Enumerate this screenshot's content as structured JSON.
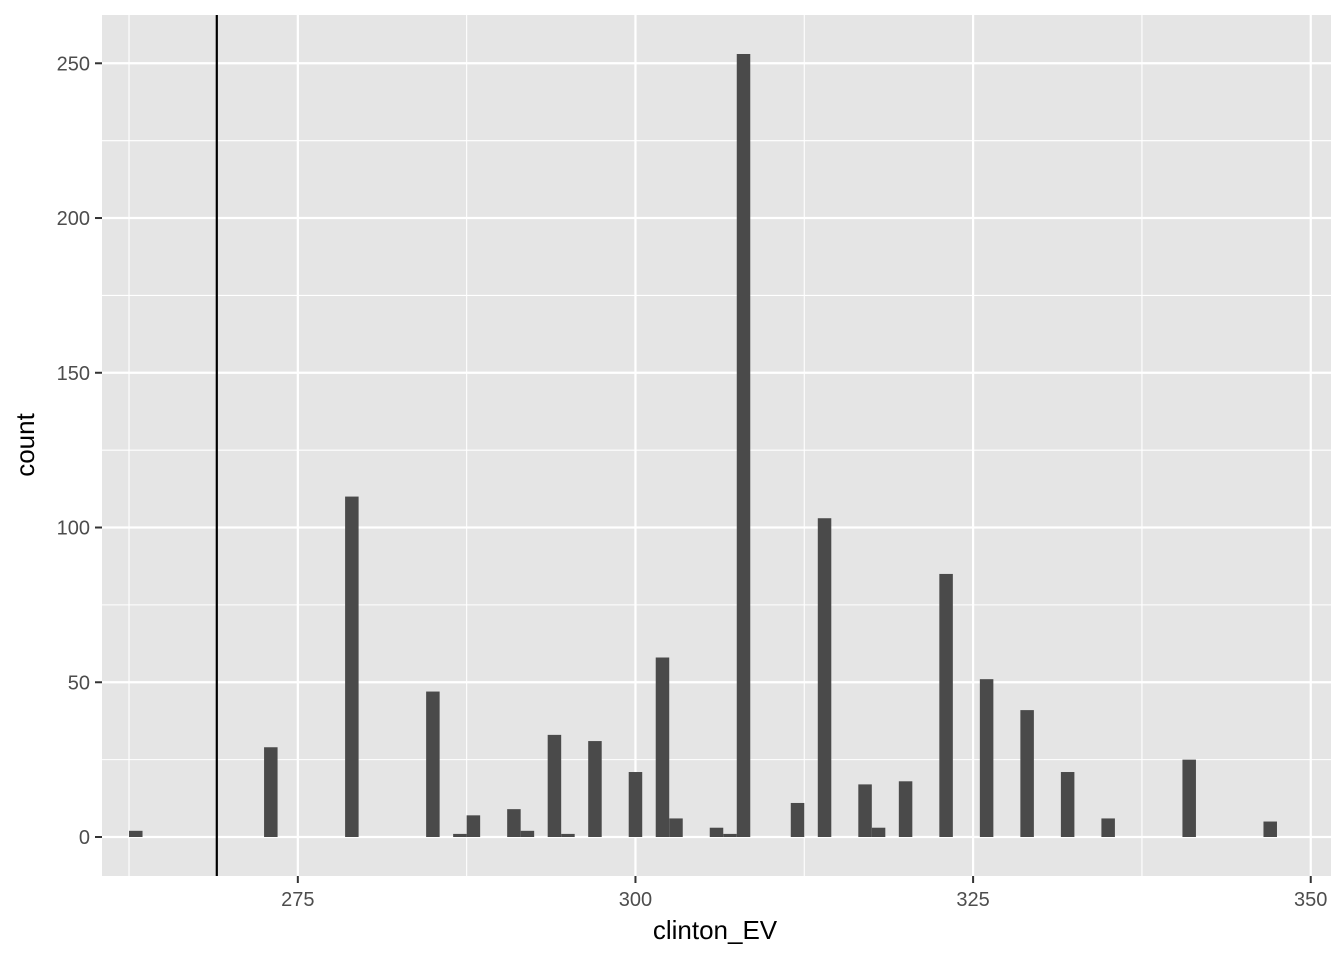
{
  "chart_data": {
    "type": "bar",
    "xlabel": "clinton_EV",
    "ylabel": "count",
    "xlim": [
      260.5,
      351.5
    ],
    "ylim": [
      -12.6,
      265.6
    ],
    "x_ticks": [
      275,
      300,
      325,
      350
    ],
    "x_minor_ticks": [
      262.5,
      287.5,
      312.5,
      337.5
    ],
    "y_ticks": [
      0,
      50,
      100,
      150,
      200,
      250
    ],
    "y_minor_ticks": [
      25,
      75,
      125,
      175,
      225
    ],
    "bin_width": 1,
    "vline_x": 269,
    "bins": [
      {
        "x": 263,
        "count": 2
      },
      {
        "x": 273,
        "count": 29
      },
      {
        "x": 279,
        "count": 110
      },
      {
        "x": 285,
        "count": 47
      },
      {
        "x": 287,
        "count": 1
      },
      {
        "x": 288,
        "count": 7
      },
      {
        "x": 291,
        "count": 9
      },
      {
        "x": 292,
        "count": 2
      },
      {
        "x": 294,
        "count": 33
      },
      {
        "x": 295,
        "count": 1
      },
      {
        "x": 297,
        "count": 31
      },
      {
        "x": 300,
        "count": 21
      },
      {
        "x": 302,
        "count": 58
      },
      {
        "x": 303,
        "count": 6
      },
      {
        "x": 306,
        "count": 3
      },
      {
        "x": 307,
        "count": 1
      },
      {
        "x": 308,
        "count": 253
      },
      {
        "x": 312,
        "count": 11
      },
      {
        "x": 314,
        "count": 103
      },
      {
        "x": 317,
        "count": 17
      },
      {
        "x": 318,
        "count": 3
      },
      {
        "x": 320,
        "count": 18
      },
      {
        "x": 323,
        "count": 85
      },
      {
        "x": 326,
        "count": 51
      },
      {
        "x": 329,
        "count": 41
      },
      {
        "x": 332,
        "count": 21
      },
      {
        "x": 335,
        "count": 6
      },
      {
        "x": 341,
        "count": 25
      },
      {
        "x": 347,
        "count": 5
      }
    ],
    "colors": {
      "panel": "#e5e5e5",
      "grid": "#ffffff",
      "bar": "#4a4a4a",
      "vline": "#000000"
    }
  }
}
